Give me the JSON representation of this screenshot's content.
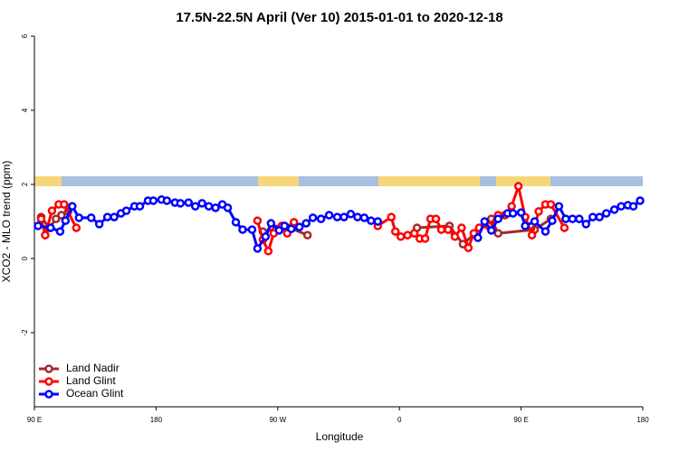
{
  "chart_data": {
    "type": "line",
    "title": "17.5N-22.5N April (Ver 10)   2015-01-01 to 2020-12-18",
    "x_label": "Longitude",
    "y_label": "XCO2 - MLO trend (ppm)",
    "xlim": [
      90,
      540
    ],
    "ylim": [
      -4,
      6
    ],
    "xticks": [
      {
        "value": 90,
        "label": "90 E"
      },
      {
        "value": 180,
        "label": "180"
      },
      {
        "value": 270,
        "label": "90 W"
      },
      {
        "value": 360,
        "label": "0"
      },
      {
        "value": 450,
        "label": "90 E"
      },
      {
        "value": 540,
        "label": "180"
      }
    ],
    "yticks": [
      -2,
      0,
      2,
      4,
      6
    ],
    "legend": "bottom-left",
    "series": [
      {
        "name": "Land Nadir",
        "color": "#a52a2a",
        "x": [
          95,
          101,
          106,
          110,
          115,
          200,
          259,
          269,
          279,
          292,
          400,
          373,
          397,
          407,
          428,
          433,
          460,
          472
        ],
        "values": [
          1.12,
          0.83,
          1.07,
          1.17,
          1.27,
          null,
          0.73,
          0.8,
          0.83,
          0.63,
          null,
          0.83,
          0.88,
          0.39,
          1.07,
          0.68,
          0.78,
          1.07
        ]
      },
      {
        "name": "Land Glint",
        "color": "#ff0000",
        "x": [
          95,
          98,
          103,
          108,
          112,
          121,
          200,
          255,
          259,
          263,
          267,
          273,
          277,
          282,
          330,
          344,
          354,
          357,
          361,
          366,
          371,
          375,
          379,
          383,
          387,
          391,
          396,
          401,
          406,
          411,
          415,
          419,
          426,
          433,
          438,
          443,
          448,
          453,
          458,
          463,
          468,
          472,
          482
        ],
        "values": [
          1.07,
          0.63,
          1.29,
          1.46,
          1.46,
          0.83,
          null,
          1.02,
          0.51,
          0.2,
          0.68,
          0.88,
          0.68,
          0.98,
          null,
          0.88,
          1.12,
          0.73,
          0.59,
          0.63,
          0.68,
          0.54,
          0.54,
          1.07,
          1.07,
          0.78,
          0.78,
          0.59,
          0.83,
          0.29,
          0.68,
          0.83,
          0.88,
          1.17,
          1.17,
          1.41,
          1.95,
          1.12,
          0.63,
          1.27,
          1.46,
          1.46,
          0.83
        ]
      },
      {
        "name": "Ocean Glint",
        "color": "#0000ff",
        "x": [
          92.7,
          102,
          109,
          113,
          118,
          123,
          132,
          138,
          144,
          149,
          154,
          158,
          164,
          168,
          174,
          178,
          184,
          188,
          194,
          198,
          204,
          209,
          214,
          219,
          224,
          229,
          233,
          239,
          244,
          251,
          255,
          261,
          265,
          271,
          275,
          280,
          286,
          291,
          296,
          302,
          308,
          314,
          319,
          324,
          329,
          334,
          339,
          344,
          400,
          418,
          423,
          428,
          433,
          440,
          444,
          450,
          453,
          460,
          468,
          473,
          478,
          483,
          488,
          493,
          498,
          503,
          508,
          513,
          519,
          524,
          529,
          533,
          538
        ],
        "values": [
          0.88,
          0.83,
          0.73,
          1.02,
          1.41,
          1.1,
          1.1,
          0.93,
          1.12,
          1.12,
          1.22,
          1.29,
          1.41,
          1.41,
          1.56,
          1.56,
          1.59,
          1.56,
          1.51,
          1.49,
          1.51,
          1.41,
          1.49,
          1.41,
          1.37,
          1.46,
          1.37,
          0.98,
          0.78,
          0.78,
          0.27,
          0.59,
          0.95,
          0.76,
          0.88,
          0.8,
          0.85,
          0.95,
          1.1,
          1.07,
          1.17,
          1.12,
          1.12,
          1.2,
          1.12,
          1.1,
          1.02,
          1.0,
          null,
          0.56,
          1.0,
          0.76,
          1.07,
          1.22,
          1.22,
          1.24,
          0.88,
          1.0,
          0.73,
          1.02,
          1.41,
          1.07,
          1.07,
          1.07,
          0.93,
          1.12,
          1.12,
          1.22,
          1.32,
          1.41,
          1.44,
          1.41,
          1.56
        ]
      }
    ]
  }
}
